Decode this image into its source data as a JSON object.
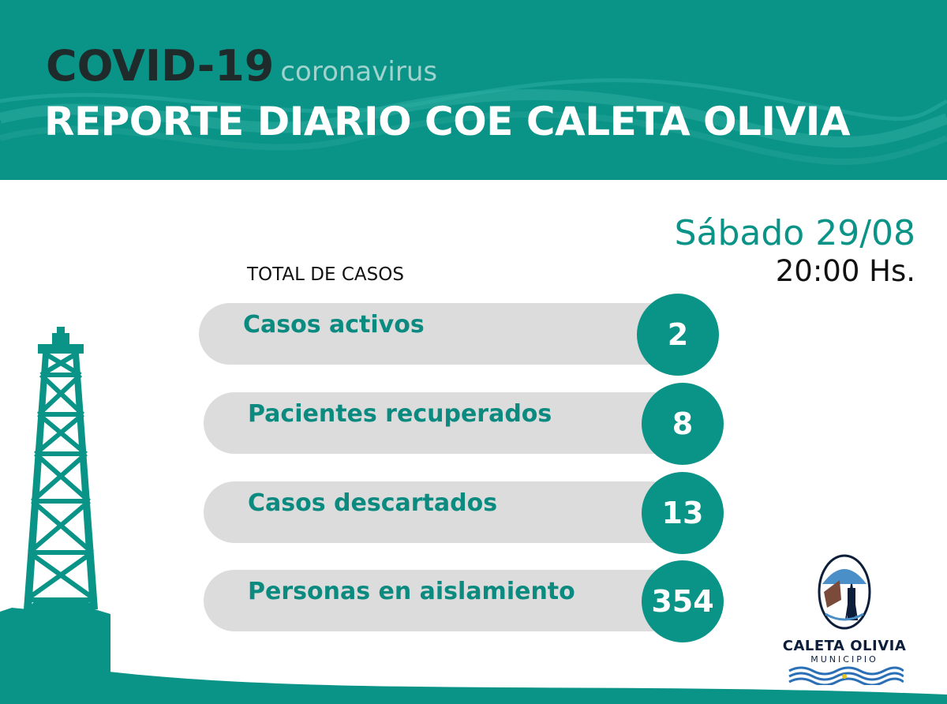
{
  "header": {
    "title": "COVID-19",
    "subtitle": "coronavirus",
    "report_title": "REPORTE DIARIO COE CALETA OLIVIA"
  },
  "report": {
    "date": "Sábado 29/08",
    "time": "20:00 Hs.",
    "total_label": "TOTAL DE CASOS"
  },
  "stats": [
    {
      "label": "Casos activos",
      "value": "2"
    },
    {
      "label": "Pacientes recuperados",
      "value": "8"
    },
    {
      "label": "Casos descartados",
      "value": "13"
    },
    {
      "label": "Personas en aislamiento",
      "value": "354"
    }
  ],
  "logo": {
    "name": "CALETA OLIVIA",
    "subtitle": "MUNICIPIO"
  },
  "colors": {
    "teal": "#0a9387",
    "pill_gray": "#dcdcdc",
    "title_dark": "#1f2a2a"
  },
  "icons": [
    "oil-derrick-icon",
    "municipal-shield-icon"
  ]
}
